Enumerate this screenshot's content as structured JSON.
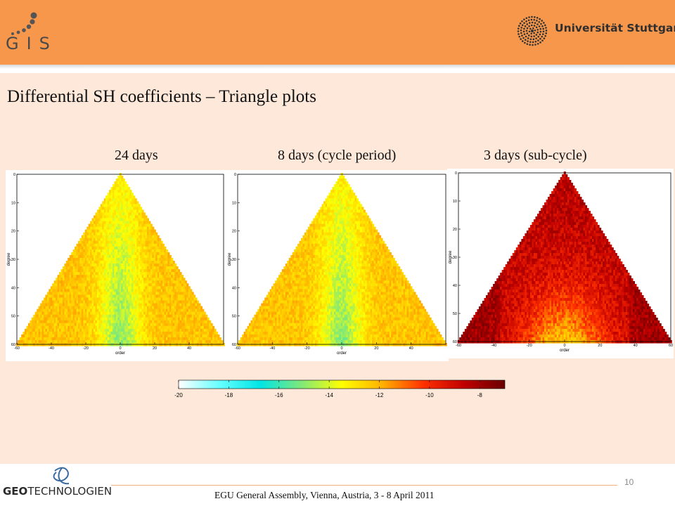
{
  "header": {
    "logo_text": "GIS",
    "university": "Universität Stuttgart",
    "colors": {
      "header_bg": "#f7974b",
      "content_bg": "#fde8da"
    }
  },
  "slide": {
    "title": "Differential SH coefficients – Triangle plots"
  },
  "plots": [
    {
      "label": "24 days",
      "scheme": "cool"
    },
    {
      "label": "8 days (cycle period)",
      "scheme": "cool"
    },
    {
      "label": "3 days (sub-cycle)",
      "scheme": "hot"
    }
  ],
  "chart_data": {
    "type": "heatmap",
    "xlabel": "order",
    "ylabel": "degree",
    "x_ticks": [
      -60,
      -40,
      -20,
      0,
      20,
      40
    ],
    "x_ticks_panel3": [
      -60,
      -40,
      -20,
      0,
      20,
      40,
      60
    ],
    "y_ticks": [
      0,
      10,
      20,
      30,
      40,
      50,
      60
    ],
    "xlim": [
      -60,
      60
    ],
    "ylim": [
      60,
      0
    ],
    "colorbar": {
      "ticks": [
        "-20",
        "-18",
        "-16",
        "-14",
        "-12",
        "-10",
        "-8"
      ],
      "range": [
        -20,
        -7
      ],
      "colors": [
        "#ffffff",
        "#66ffff",
        "#00e5e5",
        "#7ee87a",
        "#ffff00",
        "#ffb000",
        "#ff3000",
        "#c00000",
        "#6a0000"
      ]
    }
  },
  "footer": {
    "logo_text_bold": "GEO",
    "logo_text_rest": "TECHNOLOGIEN",
    "page_number": "10",
    "conference": "EGU General Assembly, Vienna, Austria, 3 - 8 April 2011"
  }
}
